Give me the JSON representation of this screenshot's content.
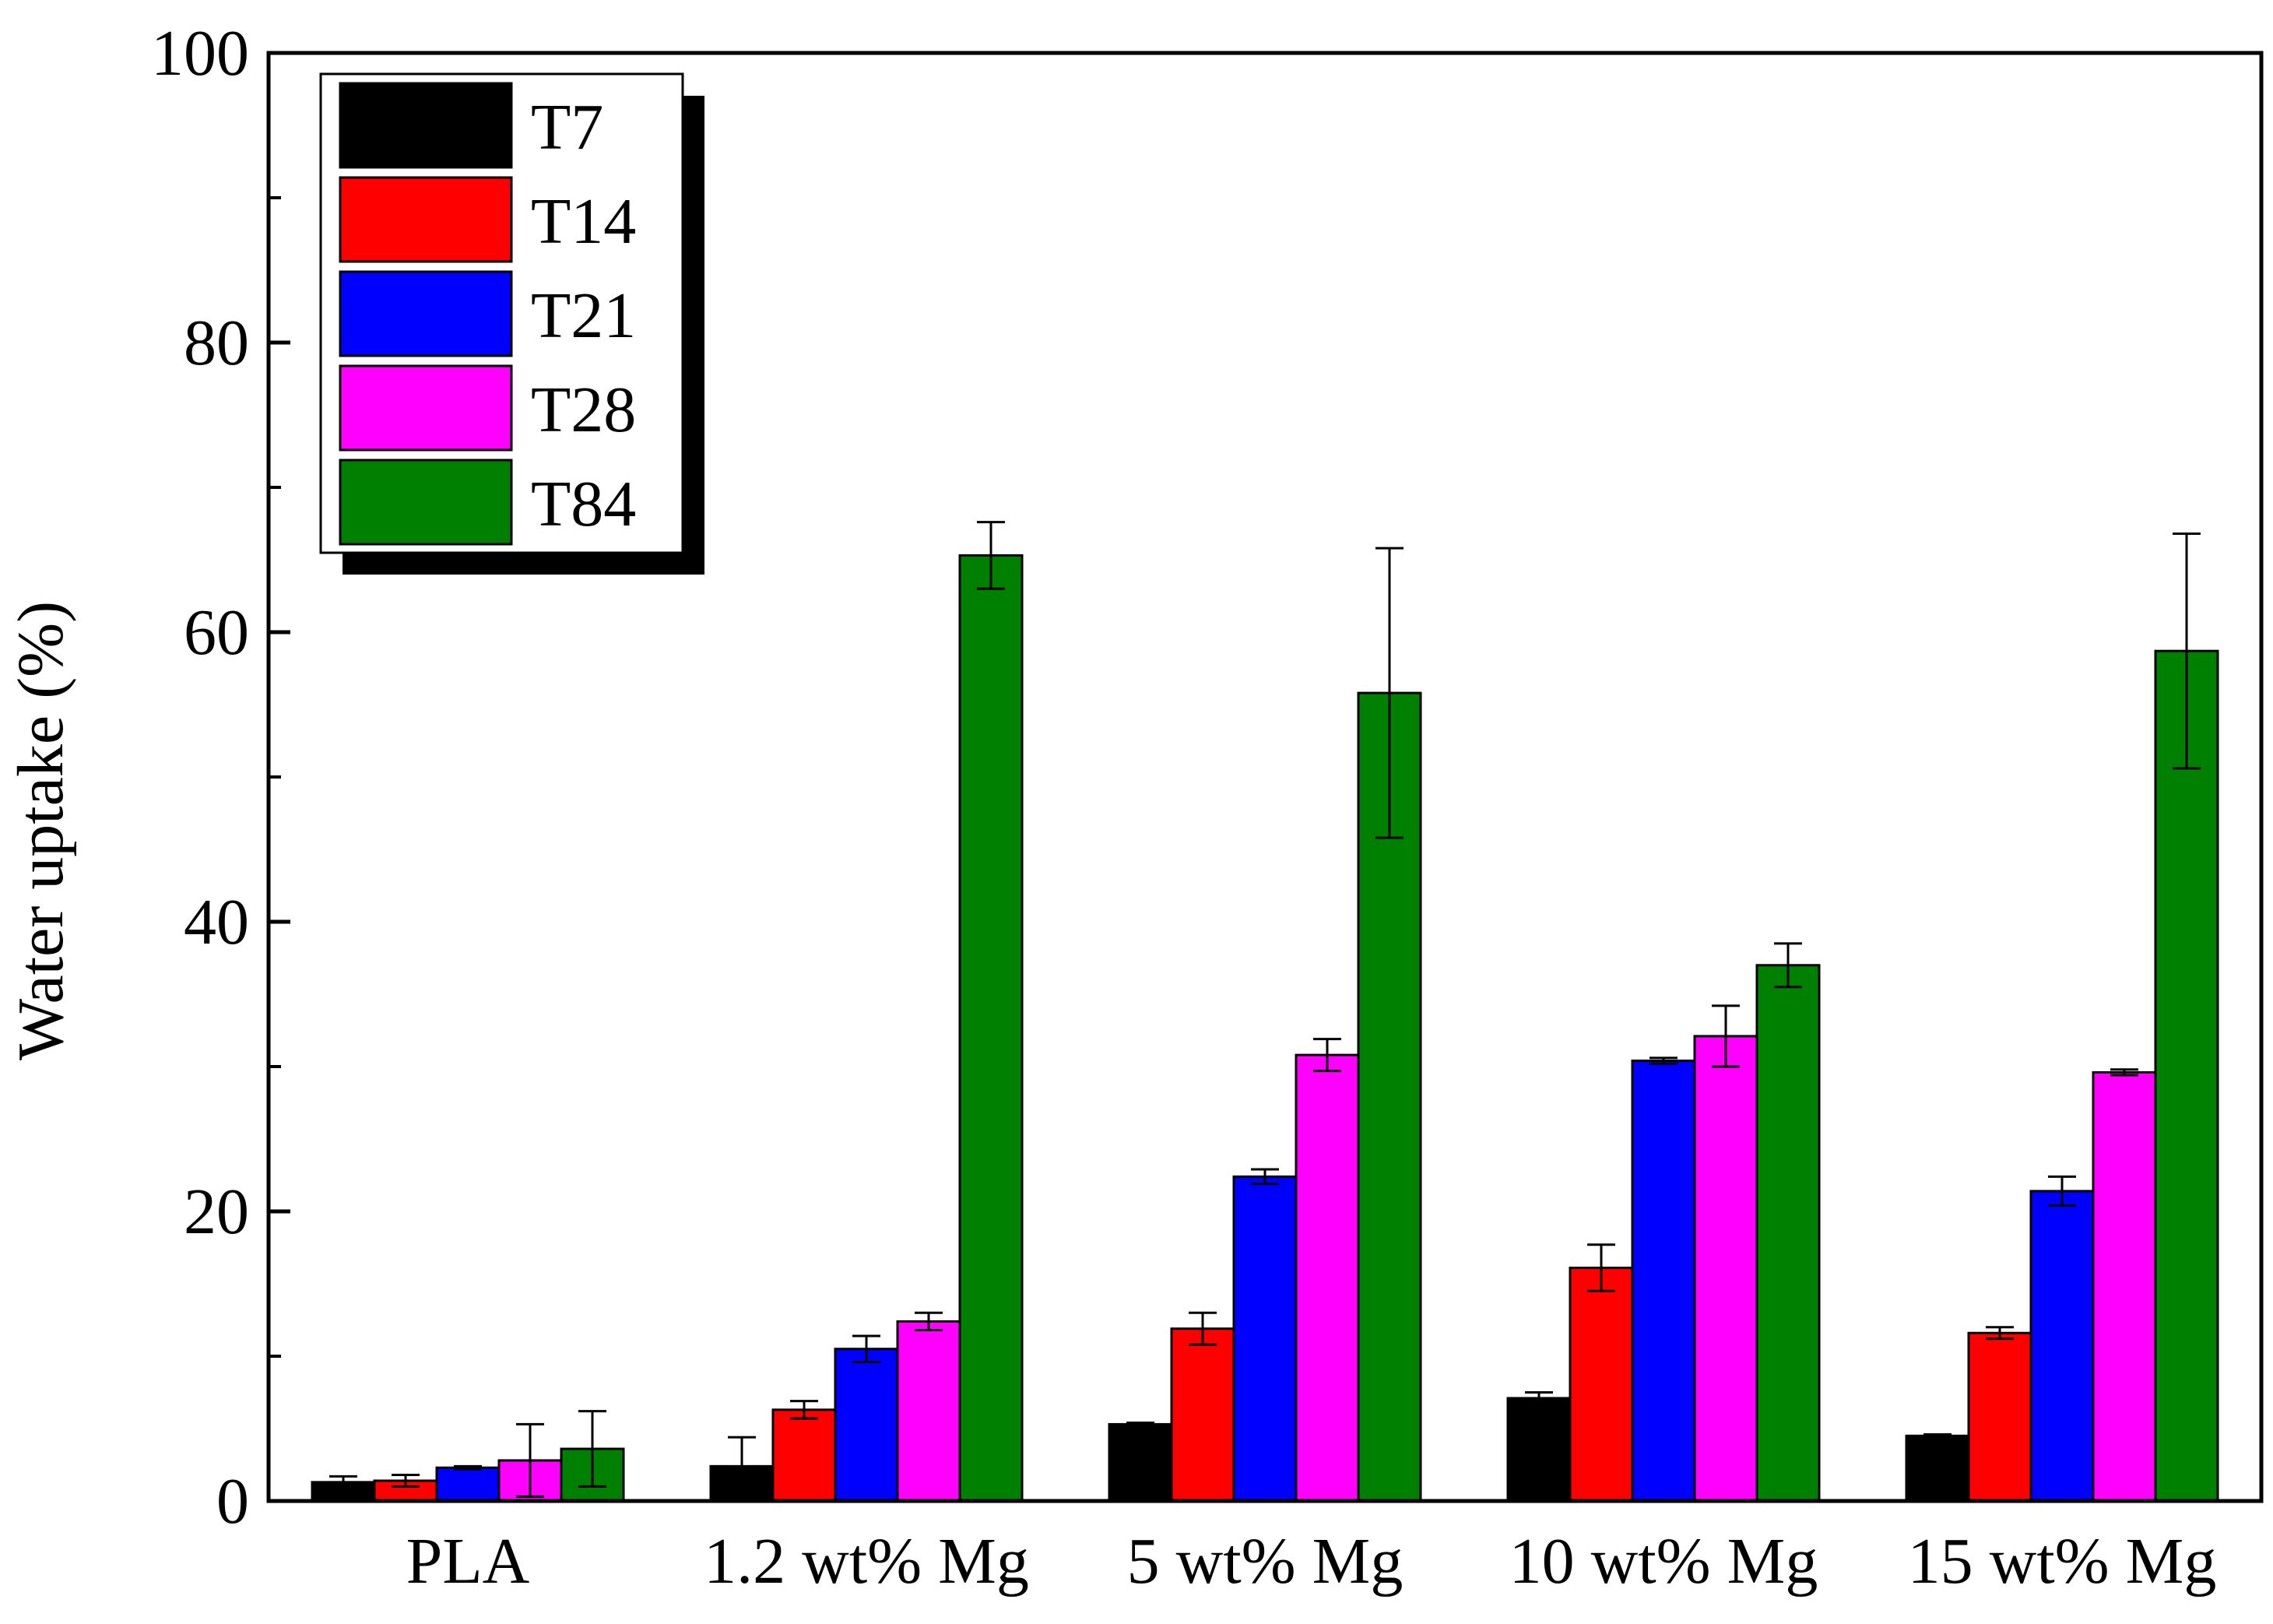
{
  "chart_data": {
    "type": "bar",
    "title": "",
    "xlabel": "",
    "ylabel": "Water uptake (%)",
    "ylim": [
      0,
      100
    ],
    "yticks": [
      0,
      20,
      40,
      60,
      80,
      100
    ],
    "categories": [
      "PLA",
      "1.2 wt% Mg",
      "5 wt% Mg",
      "10 wt% Mg",
      "15 wt% Mg"
    ],
    "legend_position": "top-left",
    "series": [
      {
        "name": "T7",
        "color": "#000000",
        "values": [
          1.3,
          2.4,
          5.3,
          7.1,
          4.5
        ],
        "errors": [
          0.4,
          2.0,
          0.1,
          0.4,
          0.1
        ]
      },
      {
        "name": "T14",
        "color": "#ff0000",
        "values": [
          1.4,
          6.3,
          11.9,
          16.1,
          11.6
        ],
        "errors": [
          0.4,
          0.6,
          1.1,
          1.6,
          0.4
        ]
      },
      {
        "name": "T21",
        "color": "#0000ff",
        "values": [
          2.3,
          10.5,
          22.4,
          30.4,
          21.4
        ],
        "errors": [
          0.1,
          0.9,
          0.5,
          0.2,
          1.0
        ]
      },
      {
        "name": "T28",
        "color": "#ff00ff",
        "values": [
          2.8,
          12.4,
          30.8,
          32.1,
          29.6
        ],
        "errors": [
          2.5,
          0.6,
          1.1,
          2.1,
          0.2
        ]
      },
      {
        "name": "T84",
        "color": "#008000",
        "values": [
          3.6,
          65.3,
          55.8,
          37.0,
          58.7
        ],
        "errors": [
          2.6,
          2.3,
          10.0,
          1.5,
          8.1
        ]
      }
    ]
  }
}
